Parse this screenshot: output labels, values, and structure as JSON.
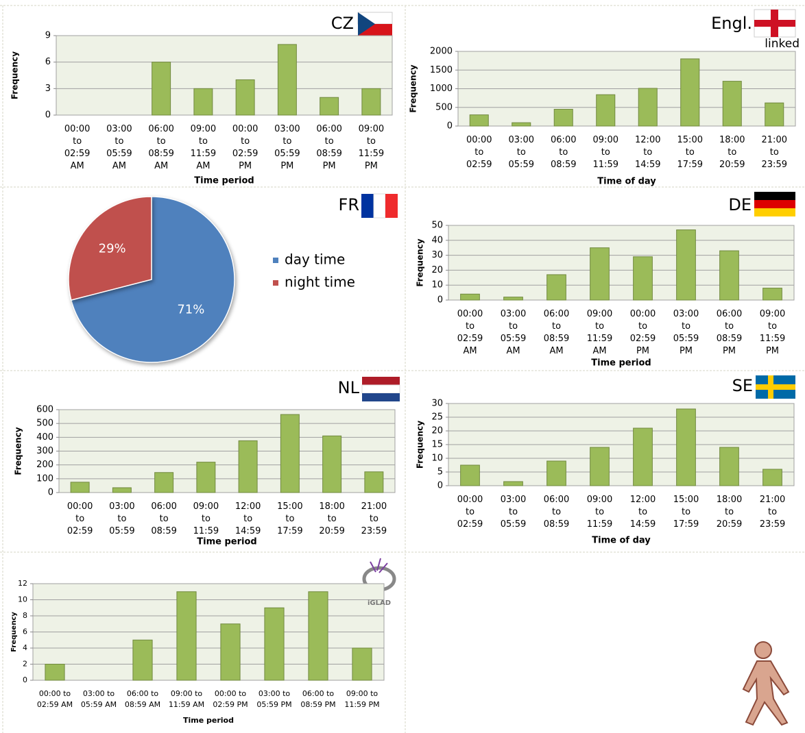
{
  "chart_data": [
    {
      "type": "bar",
      "label": "CZ",
      "xlabel": "Time period",
      "ylabel": "Frequency",
      "color": "#9bbb59",
      "categories": [
        "00:00\nto\n02:59\nAM",
        "03:00\nto\n05:59\nAM",
        "06:00\nto\n08:59\nAM",
        "09:00\nto\n11:59\nAM",
        "00:00\nto\n02:59\nPM",
        "03:00\nto\n05:59\nPM",
        "06:00\nto\n08:59\nPM",
        "09:00\nto\n11:59\nPM"
      ],
      "values": [
        0,
        0,
        6,
        3,
        4,
        8,
        2,
        3
      ],
      "ylim": [
        0,
        9
      ],
      "yticks": [
        0,
        3,
        6,
        9
      ],
      "grid": true
    },
    {
      "type": "bar",
      "label": "Engl.",
      "note": "linked",
      "xlabel": "Time of day",
      "ylabel": "Frequency",
      "color": "#9bbb59",
      "categories": [
        "00:00\nto\n02:59",
        "03:00\nto\n05:59",
        "06:00\nto\n08:59",
        "09:00\nto\n11:59",
        "12:00\nto\n14:59",
        "15:00\nto\n17:59",
        "18:00\nto\n20:59",
        "21:00\nto\n23:59"
      ],
      "values": [
        300,
        90,
        450,
        840,
        1010,
        1800,
        1200,
        620
      ],
      "ylim": [
        0,
        2000
      ],
      "yticks": [
        0,
        500,
        1000,
        1500,
        2000
      ],
      "grid": true
    },
    {
      "type": "pie",
      "label": "FR",
      "categories": [
        "day time",
        "night time"
      ],
      "values": [
        71,
        29
      ],
      "value_labels": [
        "71%",
        "29%"
      ],
      "colors": [
        "#4f81bd",
        "#c0504d"
      ]
    },
    {
      "type": "bar",
      "label": "DE",
      "xlabel": "Time period",
      "ylabel": "Frequency",
      "color": "#9bbb59",
      "categories": [
        "00:00\nto\n02:59\nAM",
        "03:00\nto\n05:59\nAM",
        "06:00\nto\n08:59\nAM",
        "09:00\nto\n11:59\nAM",
        "00:00\nto\n02:59\nPM",
        "03:00\nto\n05:59\nPM",
        "06:00\nto\n08:59\nPM",
        "09:00\nto\n11:59\nPM"
      ],
      "values": [
        4,
        2,
        17,
        35,
        29,
        47,
        33,
        8
      ],
      "ylim": [
        0,
        50
      ],
      "yticks": [
        0,
        10,
        20,
        30,
        40,
        50
      ],
      "grid": true
    },
    {
      "type": "bar",
      "label": "NL",
      "xlabel": "Time period",
      "ylabel": "Frequency",
      "color": "#9bbb59",
      "categories": [
        "00:00\nto\n02:59",
        "03:00\nto\n05:59",
        "06:00\nto\n08:59",
        "09:00\nto\n11:59",
        "12:00\nto\n14:59",
        "15:00\nto\n17:59",
        "18:00\nto\n20:59",
        "21:00\nto\n23:59"
      ],
      "values": [
        75,
        35,
        145,
        220,
        375,
        565,
        410,
        150
      ],
      "ylim": [
        0,
        600
      ],
      "yticks": [
        0,
        100,
        200,
        300,
        400,
        500,
        600
      ],
      "grid": true
    },
    {
      "type": "bar",
      "label": "SE",
      "xlabel": "Time of day",
      "ylabel": "Frequency",
      "color": "#9bbb59",
      "categories": [
        "00:00\nto\n02:59",
        "03:00\nto\n05:59",
        "06:00\nto\n08:59",
        "09:00\nto\n11:59",
        "12:00\nto\n14:59",
        "15:00\nto\n17:59",
        "18:00\nto\n20:59",
        "21:00\nto\n23:59"
      ],
      "values": [
        7.5,
        1.5,
        9,
        14,
        21,
        28,
        14,
        6
      ],
      "ylim": [
        0,
        30
      ],
      "yticks": [
        0,
        5,
        10,
        15,
        20,
        25,
        30
      ],
      "grid": true
    },
    {
      "type": "bar",
      "logo": "iGLAD",
      "xlabel": "Time period",
      "ylabel": "Frequency",
      "color": "#9bbb59",
      "categories": [
        "00:00 to\n02:59 AM",
        "03:00 to\n05:59 AM",
        "06:00 to\n08:59 AM",
        "09:00 to\n11:59 AM",
        "00:00 to\n02:59 PM",
        "03:00 to\n05:59 PM",
        "06:00 to\n08:59 PM",
        "09:00 to\n11:59 PM"
      ],
      "values": [
        2,
        0,
        5,
        11,
        7,
        9,
        11,
        4
      ],
      "ylim": [
        0,
        12
      ],
      "yticks": [
        0,
        2,
        4,
        6,
        8,
        10,
        12
      ],
      "grid": true
    }
  ]
}
